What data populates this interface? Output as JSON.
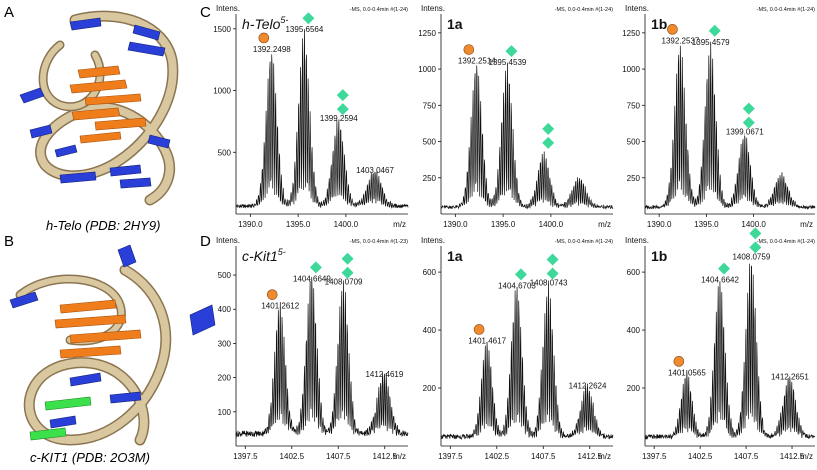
{
  "figure": {
    "panel_labels": {
      "A": "A",
      "B": "B",
      "C": "C",
      "D": "D"
    },
    "structure_top_caption": "h-Telo (PDB: 2HY9)",
    "structure_bottom_caption": "c-KIT1 (PDB: 2O3M)",
    "colors": {
      "ribbon": "#d9c7a0",
      "ribbon_edge": "#8a7550",
      "base_blue": "#2a3fd8",
      "base_orange": "#f07d1c",
      "base_green": "#3ce04a",
      "spectrum": "#111111",
      "marker_circle": "#ef8a2e",
      "marker_diamond": "#3ed99a"
    }
  },
  "chart_data": [
    {
      "id": "c1",
      "type": "line",
      "intens_label": "Intens.",
      "xunit": "m/z",
      "header": "-MS, 0.0-0.4min #(1-24)",
      "title_main": "h-Telo",
      "title_sup": "5-",
      "xlim": [
        1388.5,
        1406.5
      ],
      "ylim": [
        0,
        1620
      ],
      "xticks": [
        1390.0,
        1395.0,
        1400.0
      ],
      "xtick_labels": [
        "1390.0",
        "1395.0",
        "1400.0"
      ],
      "yticks": [
        500,
        1000,
        1500
      ],
      "ytick_labels": [
        "500",
        "1000",
        "1500"
      ],
      "envelope": [
        {
          "center": 1392.25,
          "amp": 1280,
          "width": 0.55
        },
        {
          "center": 1395.66,
          "amp": 1440,
          "width": 0.55
        },
        {
          "center": 1399.26,
          "amp": 720,
          "width": 0.6
        },
        {
          "center": 1403.05,
          "amp": 300,
          "width": 0.7
        }
      ],
      "baseline": 80,
      "peak_labels": [
        {
          "x": 1392.2498,
          "y": 1280,
          "text": "1392.2498",
          "markers": "circle"
        },
        {
          "x": 1395.6564,
          "y": 1440,
          "text": "1395.6564",
          "markers": "diamond1"
        },
        {
          "x": 1399.2594,
          "y": 720,
          "text": "1399.2594",
          "markers": "diamond2"
        },
        {
          "x": 1403.0467,
          "y": 300,
          "text": "1403.0467",
          "markers": ""
        }
      ]
    },
    {
      "id": "c2",
      "type": "line",
      "intens_label": "Intens.",
      "xunit": "m/z",
      "header": "-MS, 0.0-0.4min #(1-24)",
      "title_main": "1a",
      "title_sup": "",
      "xlim": [
        1388.5,
        1406.5
      ],
      "ylim": [
        0,
        1380
      ],
      "xticks": [
        1390.0,
        1395.0,
        1400.0
      ],
      "xtick_labels": [
        "1390.0",
        "1395.0",
        "1400.0"
      ],
      "yticks": [
        250,
        500,
        750,
        1000,
        1250
      ],
      "ytick_labels": [
        "250",
        "500",
        "750",
        "1000",
        "1250"
      ],
      "envelope": [
        {
          "center": 1392.25,
          "amp": 1010,
          "width": 0.55
        },
        {
          "center": 1395.45,
          "amp": 1000,
          "width": 0.55
        },
        {
          "center": 1399.3,
          "amp": 380,
          "width": 0.6
        },
        {
          "center": 1403.0,
          "amp": 210,
          "width": 0.7
        }
      ],
      "baseline": 60,
      "peak_labels": [
        {
          "x": 1392.2514,
          "y": 1010,
          "text": "1392.2514",
          "markers": "circle"
        },
        {
          "x": 1395.4539,
          "y": 1000,
          "text": "1395.4539",
          "markers": "diamond1"
        },
        {
          "x": 1399.3,
          "y": 380,
          "text": "",
          "markers": "diamond2"
        }
      ]
    },
    {
      "id": "c3",
      "type": "line",
      "intens_label": "Intens.",
      "xunit": "m/z",
      "header": "-MS, 0.0-0.4min #(1-24)",
      "title_main": "1b",
      "title_sup": "",
      "xlim": [
        1388.5,
        1406.5
      ],
      "ylim": [
        0,
        1380
      ],
      "xticks": [
        1390.0,
        1395.0,
        1400.0
      ],
      "xtick_labels": [
        "1390.0",
        "1395.0",
        "1400.0"
      ],
      "yticks": [
        250,
        500,
        750,
        1000,
        1250
      ],
      "ytick_labels": [
        "250",
        "500",
        "750",
        "1000",
        "1250"
      ],
      "envelope": [
        {
          "center": 1392.25,
          "amp": 1150,
          "width": 0.55
        },
        {
          "center": 1395.46,
          "amp": 1140,
          "width": 0.55
        },
        {
          "center": 1399.07,
          "amp": 520,
          "width": 0.6
        },
        {
          "center": 1403.0,
          "amp": 230,
          "width": 0.7
        }
      ],
      "baseline": 60,
      "peak_labels": [
        {
          "x": 1392.2537,
          "y": 1150,
          "text": "1392.2537",
          "markers": "circle"
        },
        {
          "x": 1395.4579,
          "y": 1140,
          "text": "1395.4579",
          "markers": "diamond1"
        },
        {
          "x": 1399.0671,
          "y": 520,
          "text": "1399.0671",
          "markers": "diamond2"
        }
      ]
    },
    {
      "id": "d1",
      "type": "line",
      "intens_label": "Intens.",
      "xunit": "m/z",
      "header": "-MS, 0.0-0.4min #(1-23)",
      "title_main": "c-Kit1",
      "title_sup": "5-",
      "xlim": [
        1396.5,
        1415.0
      ],
      "ylim": [
        0,
        585
      ],
      "xticks": [
        1397.5,
        1402.5,
        1407.5,
        1412.5
      ],
      "xtick_labels": [
        "1397.5",
        "1402.5",
        "1407.5",
        "1412.5"
      ],
      "yticks": [
        100,
        200,
        300,
        400,
        500
      ],
      "ytick_labels": [
        "100",
        "200",
        "300",
        "400",
        "500"
      ],
      "envelope": [
        {
          "center": 1401.26,
          "amp": 390,
          "width": 0.55
        },
        {
          "center": 1404.66,
          "amp": 470,
          "width": 0.55
        },
        {
          "center": 1408.07,
          "amp": 460,
          "width": 0.55
        },
        {
          "center": 1412.46,
          "amp": 190,
          "width": 0.65
        }
      ],
      "baseline": 45,
      "peak_labels": [
        {
          "x": 1401.2612,
          "y": 390,
          "text": "1401.2612",
          "markers": "circle"
        },
        {
          "x": 1404.6649,
          "y": 470,
          "text": "1404.6649",
          "markers": "diamond1"
        },
        {
          "x": 1408.0709,
          "y": 460,
          "text": "1408.0709",
          "markers": "diamond2"
        },
        {
          "x": 1412.4619,
          "y": 190,
          "text": "1412.4619",
          "markers": ""
        }
      ]
    },
    {
      "id": "d2",
      "type": "line",
      "intens_label": "Intens.",
      "xunit": "m/z",
      "header": "-MS, 0.0-0.4min #(1-24)",
      "title_main": "1a",
      "title_sup": "",
      "xlim": [
        1396.5,
        1415.0
      ],
      "ylim": [
        0,
        690
      ],
      "xticks": [
        1397.5,
        1402.5,
        1407.5,
        1412.5
      ],
      "xtick_labels": [
        "1397.5",
        "1402.5",
        "1407.5",
        "1412.5"
      ],
      "yticks": [
        200,
        400,
        600
      ],
      "ytick_labels": [
        "200",
        "400",
        "600"
      ],
      "envelope": [
        {
          "center": 1401.46,
          "amp": 340,
          "width": 0.55
        },
        {
          "center": 1404.67,
          "amp": 530,
          "width": 0.55
        },
        {
          "center": 1408.07,
          "amp": 540,
          "width": 0.55
        },
        {
          "center": 1412.26,
          "amp": 185,
          "width": 0.65
        }
      ],
      "baseline": 40,
      "peak_labels": [
        {
          "x": 1401.4617,
          "y": 340,
          "text": "1401.4617",
          "markers": "circle"
        },
        {
          "x": 1404.6703,
          "y": 530,
          "text": "1404.6703",
          "markers": "diamond1"
        },
        {
          "x": 1408.0743,
          "y": 540,
          "text": "1408.0743",
          "markers": "diamond2"
        },
        {
          "x": 1412.2624,
          "y": 185,
          "text": "1412.2624",
          "markers": ""
        }
      ]
    },
    {
      "id": "d3",
      "type": "line",
      "intens_label": "Intens.",
      "xunit": "m/z",
      "header": "-MS, 0.0-0.4min #(1-24)",
      "title_main": "1b",
      "title_sup": "",
      "xlim": [
        1396.5,
        1415.0
      ],
      "ylim": [
        0,
        690
      ],
      "xticks": [
        1397.5,
        1402.5,
        1407.5,
        1412.5
      ],
      "xtick_labels": [
        "1397.5",
        "1402.5",
        "1407.5",
        "1412.5"
      ],
      "yticks": [
        200,
        400,
        600
      ],
      "ytick_labels": [
        "200",
        "400",
        "600"
      ],
      "envelope": [
        {
          "center": 1401.06,
          "amp": 230,
          "width": 0.55
        },
        {
          "center": 1404.66,
          "amp": 550,
          "width": 0.55
        },
        {
          "center": 1408.08,
          "amp": 630,
          "width": 0.55
        },
        {
          "center": 1412.27,
          "amp": 215,
          "width": 0.65
        }
      ],
      "baseline": 40,
      "peak_labels": [
        {
          "x": 1401.0565,
          "y": 230,
          "text": "1401.0565",
          "markers": "circle"
        },
        {
          "x": 1404.6642,
          "y": 550,
          "text": "1404.6642",
          "markers": "diamond1"
        },
        {
          "x": 1408.0759,
          "y": 630,
          "text": "1408.0759",
          "markers": "diamond2"
        },
        {
          "x": 1412.2651,
          "y": 215,
          "text": "1412.2651",
          "markers": ""
        }
      ]
    }
  ]
}
